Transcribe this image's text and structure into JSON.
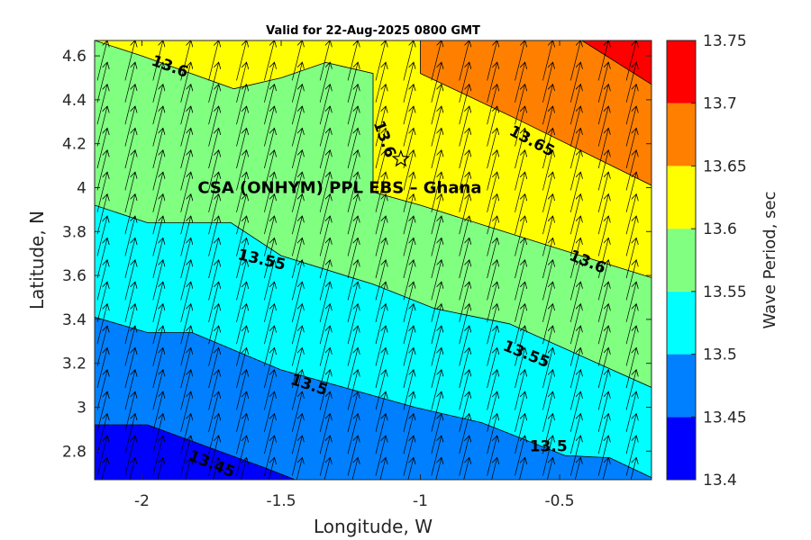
{
  "chart_data": {
    "type": "contour",
    "title": "Valid for 22-Aug-2025 0800 GMT",
    "xlabel": "Longitude, W",
    "ylabel": "Latitude, N",
    "xlim": [
      -2.17,
      -0.17
    ],
    "ylim": [
      2.67,
      4.67
    ],
    "xticks": [
      -2,
      -1.5,
      -1,
      -0.5
    ],
    "xtick_labels": [
      "-2",
      "-1.5",
      "-1",
      "-0.5"
    ],
    "yticks": [
      2.8,
      3,
      3.2,
      3.4,
      3.6,
      3.8,
      4,
      4.2,
      4.4,
      4.6
    ],
    "ytick_labels": [
      "2.8",
      "3",
      "3.2",
      "3.4",
      "3.6",
      "3.8",
      "4",
      "4.2",
      "4.4",
      "4.6"
    ],
    "colorbar": {
      "label": "Wave Period, sec",
      "levels": [
        13.4,
        13.45,
        13.5,
        13.55,
        13.6,
        13.65,
        13.7,
        13.75
      ],
      "tick_labels": [
        "13.4",
        "13.45",
        "13.5",
        "13.55",
        "13.6",
        "13.65",
        "13.7",
        "13.75"
      ],
      "colors": [
        "#0000ff",
        "#0080ff",
        "#00ffff",
        "#80ff80",
        "#ffff00",
        "#ff8000",
        "#ff0000"
      ]
    },
    "contour_lines": [
      {
        "level": 13.45,
        "points": [
          [
            -2.17,
            2.92
          ],
          [
            -1.98,
            2.92
          ],
          [
            -1.55,
            2.72
          ],
          [
            -1.45,
            2.67
          ]
        ]
      },
      {
        "level": 13.5,
        "points": [
          [
            -2.17,
            3.41
          ],
          [
            -1.98,
            3.34
          ],
          [
            -1.82,
            3.34
          ],
          [
            -1.5,
            3.17
          ],
          [
            -1.02,
            3.0
          ],
          [
            -0.78,
            2.93
          ],
          [
            -0.48,
            2.78
          ],
          [
            -0.32,
            2.77
          ],
          [
            -0.17,
            2.68
          ]
        ]
      },
      {
        "level": 13.55,
        "points": [
          [
            -2.17,
            3.92
          ],
          [
            -1.98,
            3.84
          ],
          [
            -1.68,
            3.84
          ],
          [
            -1.5,
            3.69
          ],
          [
            -1.17,
            3.56
          ],
          [
            -0.95,
            3.45
          ],
          [
            -0.68,
            3.38
          ],
          [
            -0.17,
            3.09
          ]
        ]
      },
      {
        "level": 13.6,
        "points": [
          [
            -2.17,
            4.67
          ],
          [
            -2.0,
            4.6
          ],
          [
            -1.67,
            4.45
          ],
          [
            -1.5,
            4.5
          ],
          [
            -1.34,
            4.57
          ],
          [
            -1.17,
            4.52
          ],
          [
            -1.17,
            3.98
          ],
          [
            -1.0,
            3.92
          ],
          [
            -0.5,
            3.72
          ],
          [
            -0.17,
            3.59
          ]
        ]
      },
      {
        "level": 13.65,
        "points": [
          [
            -1.0,
            4.67
          ],
          [
            -1.0,
            4.52
          ],
          [
            -0.65,
            4.31
          ],
          [
            -0.17,
            4.01
          ]
        ]
      },
      {
        "level": 13.7,
        "points": [
          [
            -0.42,
            4.67
          ],
          [
            -0.17,
            4.47
          ]
        ]
      }
    ],
    "contour_labels": [
      {
        "text": "13.6",
        "x": -1.9,
        "y": 4.55,
        "angle": 20
      },
      {
        "text": "13.6",
        "x": -1.13,
        "y": 4.22,
        "angle": 70
      },
      {
        "text": "13.65",
        "x": -0.6,
        "y": 4.21,
        "angle": 28
      },
      {
        "text": "13.6",
        "x": -0.4,
        "y": 3.66,
        "angle": 22
      },
      {
        "text": "13.55",
        "x": -1.57,
        "y": 3.67,
        "angle": 13
      },
      {
        "text": "13.55",
        "x": -0.62,
        "y": 3.24,
        "angle": 22
      },
      {
        "text": "13.5",
        "x": -1.4,
        "y": 3.1,
        "angle": 18
      },
      {
        "text": "13.5",
        "x": -0.54,
        "y": 2.82,
        "angle": 0
      },
      {
        "text": "13.45",
        "x": -1.75,
        "y": 2.74,
        "angle": 22
      }
    ],
    "annotation": {
      "text": "CSA (ONHYM) PPL EBS  – Ghana",
      "x": -1.29,
      "y": 4.0
    },
    "marker": {
      "type": "star",
      "x": -1.07,
      "y": 4.13
    },
    "vectors": {
      "x": [
        -2.17,
        -2.07,
        -1.97,
        -1.87,
        -1.77,
        -1.67,
        -1.57,
        -1.47,
        -1.37,
        -1.27,
        -1.17,
        -1.07,
        -0.97,
        -0.87,
        -0.77,
        -0.67,
        -0.57,
        -0.47,
        -0.37,
        -0.27
      ],
      "y": [
        2.67,
        2.77,
        2.87,
        2.97,
        3.07,
        3.17,
        3.27,
        3.37,
        3.47,
        3.57,
        3.67,
        3.77,
        3.87,
        3.97,
        4.07,
        4.17,
        4.27,
        4.37,
        4.47,
        4.57
      ],
      "direction": "north-northeast"
    }
  }
}
